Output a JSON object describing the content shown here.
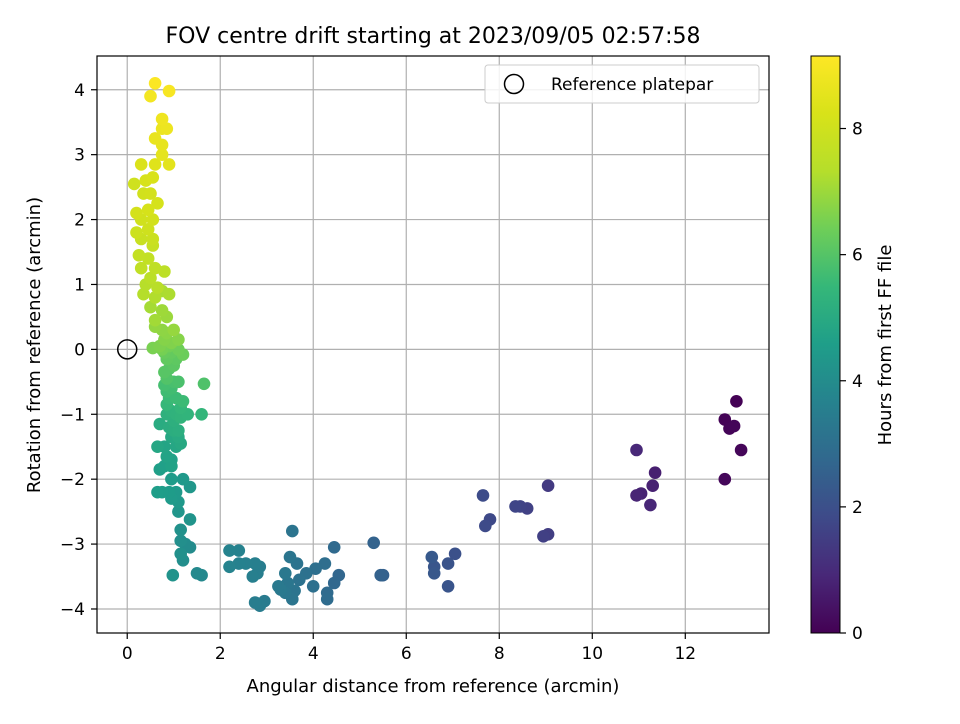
{
  "chart_data": {
    "type": "scatter",
    "title": "FOV centre drift starting at 2023/09/05 02:57:58",
    "xlabel": "Angular distance from reference (arcmin)",
    "ylabel": "Rotation from reference (arcmin)",
    "xlim": [
      -0.65,
      13.8
    ],
    "ylim": [
      -4.37,
      4.52
    ],
    "xticks": [
      0,
      2,
      4,
      6,
      8,
      10,
      12
    ],
    "yticks": [
      -4,
      -3,
      -2,
      -1,
      0,
      1,
      2,
      3,
      4
    ],
    "grid": true,
    "legend": {
      "placement": "top-right",
      "entries": [
        "Reference platepar"
      ]
    },
    "reference_point": [
      0,
      0
    ],
    "colorbar": {
      "label": "Hours from first FF file",
      "range": [
        0,
        9.15
      ],
      "ticks": [
        0,
        2,
        4,
        6,
        8
      ],
      "colormap": "viridis"
    },
    "points": [
      [
        13.1,
        -0.8,
        0.02
      ],
      [
        12.85,
        -1.08,
        0.05
      ],
      [
        12.95,
        -1.22,
        0.08
      ],
      [
        13.05,
        -1.18,
        0.1
      ],
      [
        13.2,
        -1.55,
        0.12
      ],
      [
        12.85,
        -2.0,
        0.15
      ],
      [
        11.35,
        -1.9,
        0.7
      ],
      [
        11.3,
        -2.1,
        0.75
      ],
      [
        11.05,
        -2.22,
        0.8
      ],
      [
        10.95,
        -2.25,
        0.85
      ],
      [
        11.25,
        -2.4,
        0.9
      ],
      [
        10.95,
        -1.55,
        0.92
      ],
      [
        9.05,
        -2.1,
        1.4
      ],
      [
        9.05,
        -2.85,
        1.5
      ],
      [
        8.95,
        -2.88,
        1.55
      ],
      [
        8.6,
        -2.45,
        1.6
      ],
      [
        8.45,
        -2.42,
        1.65
      ],
      [
        8.35,
        -2.42,
        1.7
      ],
      [
        7.8,
        -2.62,
        1.8
      ],
      [
        7.7,
        -2.72,
        1.85
      ],
      [
        7.65,
        -2.25,
        1.9
      ],
      [
        7.05,
        -3.15,
        2.05
      ],
      [
        6.9,
        -3.3,
        2.1
      ],
      [
        6.9,
        -3.65,
        2.15
      ],
      [
        6.6,
        -3.35,
        2.2
      ],
      [
        6.6,
        -3.45,
        2.25
      ],
      [
        6.55,
        -3.2,
        2.3
      ],
      [
        5.5,
        -3.48,
        2.5
      ],
      [
        5.45,
        -3.48,
        2.55
      ],
      [
        5.3,
        -2.98,
        2.6
      ],
      [
        4.55,
        -3.48,
        2.7
      ],
      [
        4.45,
        -3.6,
        2.75
      ],
      [
        4.45,
        -3.05,
        2.8
      ],
      [
        4.3,
        -3.75,
        2.85
      ],
      [
        4.3,
        -3.85,
        2.9
      ],
      [
        4.25,
        -3.3,
        2.95
      ],
      [
        4.05,
        -3.38,
        3.0
      ],
      [
        4.0,
        -3.65,
        3.02
      ],
      [
        3.85,
        -3.45,
        3.05
      ],
      [
        3.7,
        -3.55,
        3.1
      ],
      [
        3.65,
        -3.3,
        3.12
      ],
      [
        3.6,
        -3.72,
        3.15
      ],
      [
        3.55,
        -2.8,
        3.18
      ],
      [
        3.55,
        -3.85,
        3.2
      ],
      [
        3.5,
        -3.2,
        3.22
      ],
      [
        3.45,
        -3.6,
        3.25
      ],
      [
        3.4,
        -3.75,
        3.27
      ],
      [
        3.4,
        -3.45,
        3.3
      ],
      [
        3.3,
        -3.7,
        3.33
      ],
      [
        3.25,
        -3.65,
        3.35
      ],
      [
        2.95,
        -3.88,
        3.4
      ],
      [
        2.85,
        -3.95,
        3.45
      ],
      [
        2.75,
        -3.9,
        3.48
      ],
      [
        2.85,
        -3.35,
        3.5
      ],
      [
        2.8,
        -3.45,
        3.52
      ],
      [
        2.75,
        -3.3,
        3.55
      ],
      [
        2.7,
        -3.5,
        3.57
      ],
      [
        2.55,
        -3.3,
        3.6
      ],
      [
        2.4,
        -3.3,
        3.62
      ],
      [
        2.4,
        -3.1,
        3.65
      ],
      [
        2.2,
        -3.35,
        3.68
      ],
      [
        2.2,
        -3.1,
        3.7
      ],
      [
        1.6,
        -3.48,
        3.85
      ],
      [
        1.5,
        -3.45,
        3.88
      ],
      [
        1.35,
        -3.05,
        3.95
      ],
      [
        1.25,
        -3.0,
        4.0
      ],
      [
        1.2,
        -3.25,
        4.05
      ],
      [
        1.15,
        -2.95,
        4.1
      ],
      [
        1.15,
        -3.15,
        4.12
      ],
      [
        1.15,
        -2.78,
        4.15
      ],
      [
        0.98,
        -3.48,
        4.2
      ],
      [
        1.35,
        -2.62,
        4.25
      ],
      [
        1.1,
        -2.5,
        4.3
      ],
      [
        1.35,
        -2.12,
        4.35
      ],
      [
        1.2,
        -2.0,
        4.4
      ],
      [
        1.1,
        -2.35,
        4.42
      ],
      [
        1.05,
        -2.2,
        4.45
      ],
      [
        0.95,
        -2.3,
        4.48
      ],
      [
        0.95,
        -2.0,
        4.5
      ],
      [
        0.9,
        -2.2,
        4.52
      ],
      [
        0.75,
        -2.2,
        4.55
      ],
      [
        0.65,
        -2.2,
        4.58
      ],
      [
        0.7,
        -1.85,
        4.62
      ],
      [
        0.8,
        -1.8,
        4.65
      ],
      [
        0.95,
        -1.7,
        4.7
      ],
      [
        0.95,
        -1.8,
        4.72
      ],
      [
        0.85,
        -1.65,
        4.75
      ],
      [
        0.8,
        -1.5,
        4.8
      ],
      [
        0.65,
        -1.5,
        4.85
      ],
      [
        1.05,
        -1.5,
        4.88
      ],
      [
        0.95,
        -1.35,
        4.92
      ],
      [
        1.15,
        -1.45,
        4.95
      ],
      [
        1.1,
        -1.35,
        5.0
      ],
      [
        0.7,
        -1.15,
        5.05
      ],
      [
        0.9,
        -1.2,
        5.1
      ],
      [
        1.0,
        -1.25,
        5.12
      ],
      [
        1.1,
        -1.25,
        5.15
      ],
      [
        1.0,
        -1.1,
        5.2
      ],
      [
        0.85,
        -1.0,
        5.25
      ],
      [
        0.95,
        -0.95,
        5.3
      ],
      [
        1.05,
        -1.0,
        5.32
      ],
      [
        1.15,
        -1.05,
        5.35
      ],
      [
        1.3,
        -1.0,
        5.38
      ],
      [
        1.6,
        -1.0,
        5.42
      ],
      [
        1.15,
        -0.9,
        5.45
      ],
      [
        0.85,
        -0.85,
        5.5
      ],
      [
        0.9,
        -0.75,
        5.55
      ],
      [
        1.2,
        -0.8,
        5.6
      ],
      [
        1.05,
        -0.75,
        5.62
      ],
      [
        0.85,
        -0.65,
        5.65
      ],
      [
        0.95,
        -0.6,
        5.7
      ],
      [
        0.8,
        -0.55,
        5.75
      ],
      [
        1.0,
        -0.5,
        5.8
      ],
      [
        1.1,
        -0.5,
        5.85
      ],
      [
        1.65,
        -0.53,
        5.9
      ],
      [
        0.85,
        -0.45,
        5.95
      ],
      [
        0.9,
        -0.3,
        6.0
      ],
      [
        0.8,
        -0.35,
        6.05
      ],
      [
        1.0,
        -0.25,
        6.1
      ],
      [
        1.05,
        -0.15,
        6.15
      ],
      [
        0.85,
        -0.15,
        6.2
      ],
      [
        0.95,
        -0.05,
        6.25
      ],
      [
        0.8,
        -0.05,
        6.3
      ],
      [
        1.2,
        -0.08,
        6.35
      ],
      [
        1.1,
        0.0,
        6.4
      ],
      [
        0.9,
        0.05,
        6.45
      ],
      [
        0.75,
        0.0,
        6.5
      ],
      [
        0.55,
        0.02,
        6.55
      ],
      [
        0.7,
        0.05,
        6.6
      ],
      [
        0.95,
        0.1,
        6.65
      ],
      [
        0.8,
        0.15,
        6.7
      ],
      [
        1.1,
        0.15,
        6.72
      ],
      [
        0.85,
        0.25,
        6.78
      ],
      [
        0.75,
        0.3,
        6.82
      ],
      [
        0.6,
        0.35,
        6.88
      ],
      [
        1.0,
        0.3,
        6.92
      ],
      [
        0.85,
        0.5,
        6.98
      ],
      [
        0.75,
        0.6,
        7.03
      ],
      [
        0.6,
        0.45,
        7.08
      ],
      [
        0.5,
        0.65,
        7.12
      ],
      [
        0.75,
        0.9,
        7.18
      ],
      [
        0.9,
        0.85,
        7.22
      ],
      [
        0.6,
        0.8,
        7.28
      ],
      [
        0.35,
        0.85,
        7.33
      ],
      [
        0.4,
        1.0,
        7.38
      ],
      [
        0.65,
        0.95,
        7.42
      ],
      [
        0.5,
        1.1,
        7.47
      ],
      [
        0.8,
        1.2,
        7.52
      ],
      [
        0.6,
        1.25,
        7.57
      ],
      [
        0.3,
        1.25,
        7.62
      ],
      [
        0.45,
        1.4,
        7.67
      ],
      [
        0.25,
        1.45,
        7.72
      ],
      [
        0.55,
        1.6,
        7.77
      ],
      [
        0.3,
        1.7,
        7.82
      ],
      [
        0.55,
        1.7,
        7.87
      ],
      [
        0.2,
        1.8,
        7.92
      ],
      [
        0.45,
        1.85,
        7.97
      ],
      [
        0.3,
        2.0,
        8.02
      ],
      [
        0.55,
        2.0,
        8.07
      ],
      [
        0.2,
        2.1,
        8.12
      ],
      [
        0.45,
        2.15,
        8.17
      ],
      [
        0.15,
        2.55,
        8.0
      ],
      [
        0.35,
        2.4,
        8.05
      ],
      [
        0.5,
        2.4,
        8.1
      ],
      [
        0.65,
        2.25,
        8.15
      ],
      [
        0.4,
        2.6,
        8.2
      ],
      [
        0.55,
        2.65,
        8.25
      ],
      [
        0.3,
        2.85,
        8.3
      ],
      [
        0.6,
        2.85,
        8.4
      ],
      [
        0.9,
        2.85,
        8.5
      ],
      [
        0.75,
        3.0,
        8.55
      ],
      [
        0.75,
        3.15,
        8.6
      ],
      [
        0.6,
        3.25,
        8.65
      ],
      [
        0.75,
        3.4,
        8.7
      ],
      [
        0.85,
        3.4,
        8.75
      ],
      [
        0.75,
        3.55,
        8.8
      ],
      [
        0.5,
        3.9,
        8.9
      ],
      [
        0.9,
        3.98,
        9.0
      ],
      [
        0.6,
        4.1,
        9.1
      ]
    ]
  }
}
